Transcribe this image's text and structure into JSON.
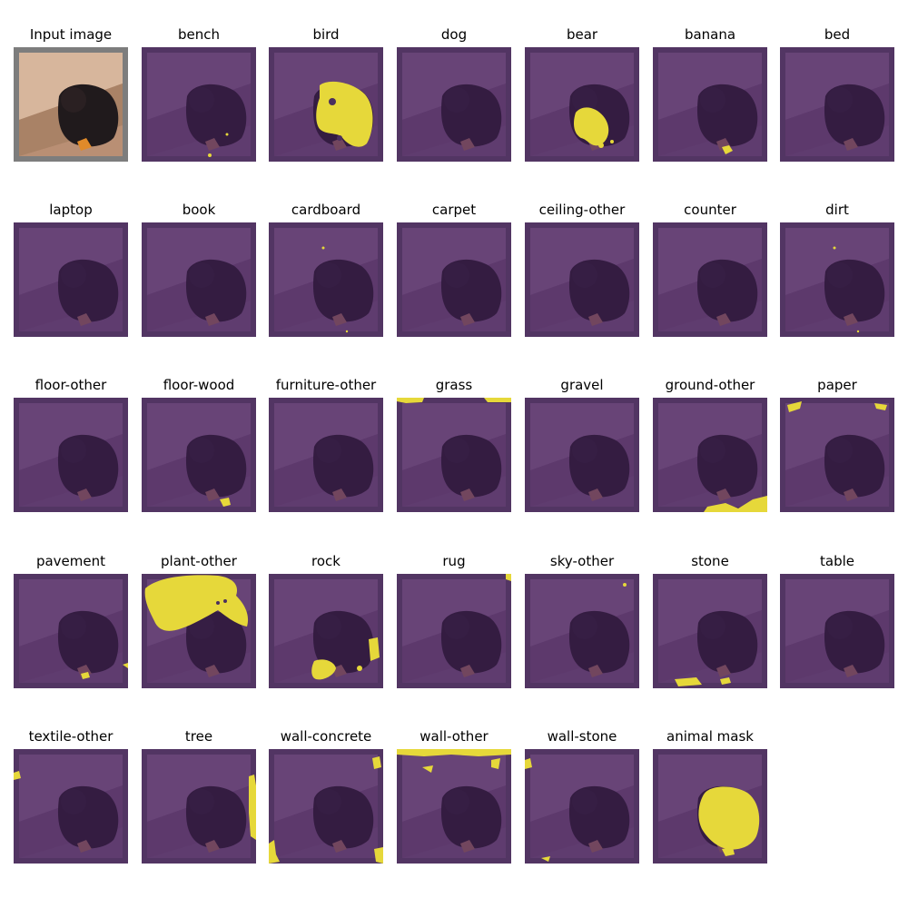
{
  "panels": [
    {
      "label": "Input image",
      "type": "input"
    },
    {
      "label": "bench",
      "mask": "bench"
    },
    {
      "label": "bird",
      "mask": "bird"
    },
    {
      "label": "dog",
      "mask": "none"
    },
    {
      "label": "bear",
      "mask": "bear"
    },
    {
      "label": "banana",
      "mask": "banana"
    },
    {
      "label": "bed",
      "mask": "none"
    },
    {
      "label": "laptop",
      "mask": "none"
    },
    {
      "label": "book",
      "mask": "none"
    },
    {
      "label": "cardboard",
      "mask": "specks"
    },
    {
      "label": "carpet",
      "mask": "none"
    },
    {
      "label": "ceiling-other",
      "mask": "none"
    },
    {
      "label": "counter",
      "mask": "none"
    },
    {
      "label": "dirt",
      "mask": "specks"
    },
    {
      "label": "floor-other",
      "mask": "none"
    },
    {
      "label": "floor-wood",
      "mask": "floorwood"
    },
    {
      "label": "furniture-other",
      "mask": "none"
    },
    {
      "label": "grass",
      "mask": "grass"
    },
    {
      "label": "gravel",
      "mask": "none"
    },
    {
      "label": "ground-other",
      "mask": "groundother"
    },
    {
      "label": "paper",
      "mask": "paper"
    },
    {
      "label": "pavement",
      "mask": "pavement"
    },
    {
      "label": "plant-other",
      "mask": "plant"
    },
    {
      "label": "rock",
      "mask": "rock"
    },
    {
      "label": "rug",
      "mask": "rug"
    },
    {
      "label": "sky-other",
      "mask": "sky"
    },
    {
      "label": "stone",
      "mask": "stone"
    },
    {
      "label": "table",
      "mask": "none"
    },
    {
      "label": "textile-other",
      "mask": "textile"
    },
    {
      "label": "tree",
      "mask": "tree"
    },
    {
      "label": "wall-concrete",
      "mask": "wallconcrete"
    },
    {
      "label": "wall-other",
      "mask": "wallother"
    },
    {
      "label": "wall-stone",
      "mask": "wallstone"
    },
    {
      "label": "animal mask",
      "mask": "animal"
    }
  ],
  "colors": {
    "mask_background": "#4a2f5e",
    "mask_highlight": "#e6d83a",
    "overlay_tint": "#44215c"
  }
}
